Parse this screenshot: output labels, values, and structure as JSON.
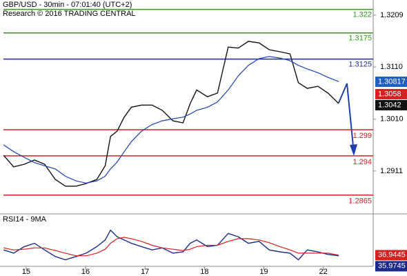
{
  "chart_data": [
    {
      "type": "line",
      "title": "GBP/USD - 30min - 07:01:40 (UTC+2)",
      "subtitle": "Research © 2016 TRADING CENTRAL",
      "x": [
        -0.38,
        -0.21,
        -0.03,
        0.14,
        0.31,
        0.49,
        0.66,
        0.84,
        1.01,
        1.19,
        1.33,
        1.42,
        1.53,
        1.65,
        1.77,
        1.94,
        2.12,
        2.29,
        2.47,
        2.64,
        2.76,
        2.87,
        3.05,
        3.22,
        3.4,
        3.57,
        3.74,
        3.92,
        4.09,
        4.27,
        4.44,
        4.58,
        4.73,
        4.91,
        5.08,
        5.26
      ],
      "series": [
        {
          "name": "GBP/USD",
          "color": "#111111",
          "values": [
            1.2941,
            1.2919,
            1.2924,
            1.2932,
            1.2924,
            1.2895,
            1.2882,
            1.2882,
            1.2887,
            1.2895,
            1.2921,
            1.2977,
            1.2987,
            1.3014,
            1.3033,
            1.3037,
            1.3037,
            1.3027,
            1.3007,
            1.3003,
            1.304,
            1.3066,
            1.3053,
            1.306,
            1.3148,
            1.3146,
            1.3159,
            1.3156,
            1.3143,
            1.3139,
            1.3135,
            1.308,
            1.3069,
            1.3073,
            1.306,
            1.304
          ]
        },
        {
          "name": "MA",
          "color": "#1f3fb0",
          "values": [
            1.2961,
            1.2948,
            1.2937,
            1.2927,
            1.2921,
            1.2915,
            1.2901,
            1.2892,
            1.2888,
            1.2892,
            1.2901,
            1.2915,
            1.2928,
            1.2948,
            1.2967,
            1.2987,
            1.3,
            1.3007,
            1.3011,
            1.3014,
            1.302,
            1.3027,
            1.3033,
            1.3043,
            1.3066,
            1.3093,
            1.3113,
            1.3126,
            1.313,
            1.3127,
            1.3122,
            1.3113,
            1.3106,
            1.3099,
            1.309,
            1.3082
          ]
        }
      ],
      "xlim": [
        -0.44,
        5.84
      ],
      "xticks": [
        {
          "value": 0,
          "label": "15"
        },
        {
          "value": 1,
          "label": "16"
        },
        {
          "value": 2,
          "label": "17"
        },
        {
          "value": 3,
          "label": "18"
        },
        {
          "value": 4,
          "label": "19"
        },
        {
          "value": 5,
          "label": "22"
        }
      ],
      "ylim": [
        1.2829,
        1.3238
      ],
      "yticks": [
        1.3209,
        {
          "value": 1.311,
          "label": "1.3110"
        },
        {
          "value": 1.301,
          "label": "1.3010"
        },
        1.2911
      ],
      "levels": [
        {
          "value": 1.322,
          "color": "#2e9a1a"
        },
        {
          "value": 1.3175,
          "color": "#2e9a1a"
        },
        {
          "value": 1.3125,
          "color": "#1a2a9c"
        },
        {
          "value": 1.299,
          "color": "#d42020"
        },
        {
          "value": 1.294,
          "color": "#d42020"
        },
        {
          "value": 1.2865,
          "color": "#d42020"
        }
      ],
      "tags": [
        {
          "value": 1.30817,
          "color": "#1f5fbf"
        },
        {
          "value": 1.3058,
          "color": "#d42020"
        },
        {
          "value": 1.3042,
          "color": "#111111"
        }
      ]
    },
    {
      "type": "line",
      "title": "RSI14 - 9MA",
      "x": [
        -0.38,
        -0.21,
        -0.03,
        0.14,
        0.31,
        0.49,
        0.66,
        0.84,
        1.01,
        1.19,
        1.33,
        1.42,
        1.53,
        1.65,
        1.77,
        1.94,
        2.12,
        2.29,
        2.47,
        2.64,
        2.76,
        2.87,
        3.05,
        3.22,
        3.4,
        3.57,
        3.74,
        3.92,
        4.09,
        4.27,
        4.44,
        4.58,
        4.73,
        4.91,
        5.08,
        5.26
      ],
      "series": [
        {
          "name": "RSI14",
          "color": "#1a2a8c",
          "values": [
            45,
            40,
            50,
            55,
            45,
            35,
            30,
            35,
            40,
            50,
            60,
            75,
            65,
            60,
            55,
            50,
            45,
            48,
            40,
            42,
            55,
            60,
            50,
            52,
            70,
            65,
            55,
            58,
            45,
            42,
            40,
            30,
            45,
            42,
            38,
            36
          ]
        },
        {
          "name": "9MA",
          "color": "#d42020",
          "values": [
            48,
            45,
            46,
            48,
            48,
            44,
            40,
            36,
            36,
            40,
            46,
            55,
            62,
            64,
            62,
            58,
            52,
            48,
            46,
            44,
            46,
            50,
            52,
            52,
            58,
            62,
            62,
            60,
            56,
            50,
            45,
            40,
            40,
            40,
            40,
            37
          ]
        }
      ],
      "xlim": [
        -0.44,
        5.84
      ],
      "ylim": [
        20,
        85
      ],
      "tags": [
        {
          "value": 36.9445,
          "color": "#d42020"
        },
        {
          "value": 35.9745,
          "color": "#1a2a8c"
        }
      ]
    }
  ]
}
